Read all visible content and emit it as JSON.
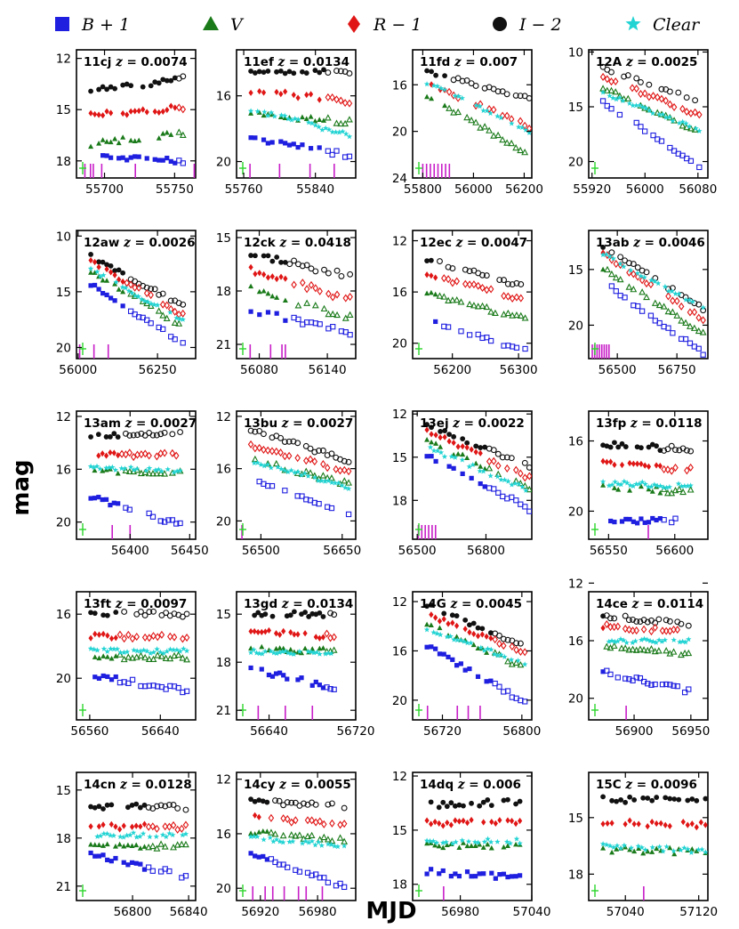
{
  "legend": [
    {
      "name": "B+1",
      "label_main": "B + 1",
      "marker": "square",
      "color": "#1f1fe0"
    },
    {
      "name": "V",
      "label_main": "V",
      "marker": "triangle",
      "color": "#1a7a1a"
    },
    {
      "name": "R-1",
      "label_main": "R − 1",
      "marker": "diamond",
      "color": "#e01515"
    },
    {
      "name": "I-2",
      "label_main": "I − 2",
      "marker": "circle",
      "color": "#111111"
    },
    {
      "name": "Clear",
      "label_main": "Clear",
      "marker": "star",
      "color": "#22d3d3"
    }
  ],
  "axes": {
    "xlabel": "MJD",
    "ylabel": "mag"
  },
  "chart_data": [
    {
      "type": "scatter",
      "name": "11cj",
      "z": "0.0074",
      "xlim": [
        55680,
        55765
      ],
      "ylim": [
        19,
        11.5
      ],
      "xticks": [
        55700,
        55750
      ],
      "yticks": [
        12,
        15,
        18
      ],
      "levels": {
        "I-2": [
          13.9,
          13.2
        ],
        "R-1": [
          15.3,
          14.9
        ],
        "V": [
          17.0,
          16.4
        ],
        "B+1": [
          17.8,
          18.0
        ]
      },
      "clear": null,
      "tmax": 55756,
      "open_after": 55753,
      "marker_ticks": [
        55686,
        55690,
        55692,
        55698,
        55722,
        55764
      ]
    },
    {
      "type": "scatter",
      "name": "11ef",
      "z": "0.0134",
      "xlim": [
        55752,
        55885
      ],
      "ylim": [
        21,
        13.2
      ],
      "xticks": [
        55760,
        55840
      ],
      "yticks": [
        16,
        20
      ],
      "levels": {
        "I-2": [
          14.5,
          14.6
        ],
        "R-1": [
          15.7,
          16.3
        ],
        "V": [
          17.1,
          17.6
        ],
        "B+1": [
          18.6,
          19.6
        ]
      },
      "clear": [
        16.8,
        18.4
      ],
      "tmax": 55878,
      "open_after": 55850,
      "marker_ticks": [
        55767,
        55800,
        55834,
        55861
      ]
    },
    {
      "type": "scatter",
      "name": "11fd",
      "z": "0.007",
      "xlim": [
        55760,
        56230
      ],
      "ylim": [
        24,
        13
      ],
      "xticks": [
        55800,
        56000,
        56200
      ],
      "yticks": [
        16,
        20,
        24
      ],
      "levels": {
        "I-2": [
          14.9,
          17.2
        ],
        "R-1": [
          15.9,
          19.6
        ],
        "V": [
          16.9,
          22.0
        ],
        "B+1": [
          null,
          null
        ]
      },
      "clear": [
        15.8,
        20.0
      ],
      "tmax": 56220,
      "open_after": 55900,
      "marker_ticks": [
        55800,
        55815,
        55830,
        55845,
        55860,
        55875,
        55890,
        55905
      ]
    },
    {
      "type": "scatter",
      "name": "12A",
      "z": "0.0025",
      "xlim": [
        55915,
        56095
      ],
      "ylim": [
        21.5,
        9.8
      ],
      "xticks": [
        55920,
        56000,
        56080
      ],
      "yticks": [
        10,
        15,
        20
      ],
      "levels": {
        "I-2": [
          11.4,
          14.5
        ],
        "R-1": [
          12.3,
          15.8
        ],
        "V": [
          13.3,
          17.3
        ],
        "B+1": [
          14.5,
          20.6
        ]
      },
      "clear": [
        13.7,
        17.1
      ],
      "tmax": 56082,
      "open_after": 55930,
      "marker_ticks": []
    },
    {
      "type": "scatter",
      "name": "12aw",
      "z": "0.0026",
      "xlim": [
        55995,
        56370
      ],
      "ylim": [
        21,
        9.5
      ],
      "xticks": [
        56000,
        56250
      ],
      "yticks": [
        10,
        15,
        20
      ],
      "levels": {
        "I-2": [
          11.8,
          16.3
        ],
        "R-1": [
          12.3,
          17.1
        ],
        "V": [
          13.2,
          18.1
        ],
        "B+1": [
          14.3,
          19.7
        ]
      },
      "clear": [
        13.0,
        17.6
      ],
      "tmax": 56330,
      "open_after": 56150,
      "marker_ticks": [
        56005,
        56050,
        56095
      ]
    },
    {
      "type": "scatter",
      "name": "12ck",
      "z": "0.0418",
      "xlim": [
        56060,
        56165
      ],
      "ylim": [
        21.8,
        14.6
      ],
      "xticks": [
        56080,
        56140
      ],
      "yticks": [
        15,
        18,
        21
      ],
      "levels": {
        "I-2": [
          15.9,
          17.2
        ],
        "R-1": [
          16.8,
          18.5
        ],
        "V": [
          17.9,
          19.5
        ],
        "B+1": [
          19.1,
          20.3
        ]
      },
      "clear": null,
      "tmax": 56160,
      "open_after": 56105,
      "marker_ticks": [
        56072,
        56090,
        56100,
        56103
      ]
    },
    {
      "type": "scatter",
      "name": "12ec",
      "z": "0.0047",
      "xlim": [
        56140,
        56320
      ],
      "ylim": [
        21.2,
        11.2
      ],
      "xticks": [
        56200,
        56300
      ],
      "yticks": [
        12,
        16,
        20
      ],
      "levels": {
        "I-2": [
          13.5,
          15.6
        ],
        "R-1": [
          14.6,
          16.6
        ],
        "V": [
          16.1,
          18.1
        ],
        "B+1": [
          18.2,
          20.6
        ]
      },
      "clear": null,
      "tmax": 56310,
      "open_after": 56180,
      "marker_ticks": []
    },
    {
      "type": "scatter",
      "name": "13ab",
      "z": "0.0046",
      "xlim": [
        56380,
        56880
      ],
      "ylim": [
        23,
        11.5
      ],
      "xticks": [
        56500,
        56750
      ],
      "yticks": [
        15,
        20
      ],
      "levels": {
        "I-2": [
          13.0,
          18.5
        ],
        "R-1": [
          13.6,
          19.5
        ],
        "V": [
          14.9,
          20.8
        ],
        "B+1": [
          16.1,
          22.5
        ]
      },
      "clear": [
        13.6,
        18.5
      ],
      "tmax": 56860,
      "open_after": 56450,
      "marker_ticks": [
        56395,
        56405,
        56415,
        56425,
        56435,
        56445,
        56455,
        56465
      ]
    },
    {
      "type": "scatter",
      "name": "13am",
      "z": "0.0027",
      "xlim": [
        56355,
        56455
      ],
      "ylim": [
        21.3,
        11.6
      ],
      "xticks": [
        56400,
        56450
      ],
      "yticks": [
        12,
        16,
        20
      ],
      "levels": {
        "I-2": [
          13.5,
          13.2
        ],
        "R-1": [
          14.9,
          14.9
        ],
        "V": [
          16.1,
          16.3
        ],
        "B+1": [
          18.1,
          20.2
        ]
      },
      "clear": [
        15.9,
        16.1
      ],
      "tmax": 56442,
      "open_after": 56390,
      "marker_ticks": [
        56385,
        56400
      ]
    },
    {
      "type": "scatter",
      "name": "13bu",
      "z": "0.0027",
      "xlim": [
        56455,
        56675
      ],
      "ylim": [
        21.4,
        11.6
      ],
      "xticks": [
        56500,
        56650
      ],
      "yticks": [
        12,
        16,
        20
      ],
      "levels": {
        "I-2": [
          13.0,
          15.4
        ],
        "R-1": [
          14.2,
          16.2
        ],
        "V": [
          15.3,
          17.2
        ],
        "B+1": [
          16.7,
          19.5
        ]
      },
      "clear": [
        15.4,
        17.4
      ],
      "tmax": 56662,
      "open_after": 56465,
      "marker_ticks": [
        56465
      ]
    },
    {
      "type": "scatter",
      "name": "13ej",
      "z": "0.0022",
      "xlim": [
        56480,
        57000
      ],
      "ylim": [
        20.7,
        11.8
      ],
      "xticks": [
        56500,
        56800
      ],
      "yticks": [
        12,
        15,
        18
      ],
      "levels": {
        "I-2": [
          12.8,
          15.6
        ],
        "R-1": [
          13.2,
          16.4
        ],
        "V": [
          13.8,
          17.2
        ],
        "B+1": [
          14.8,
          18.6
        ]
      },
      "clear": [
        14.3,
        17.3
      ],
      "tmax": 56990,
      "open_after": 56800,
      "marker_ticks": [
        56505,
        56520,
        56535,
        56550,
        56565,
        56580
      ]
    },
    {
      "type": "scatter",
      "name": "13fp",
      "z": "0.0118",
      "xlim": [
        56535,
        56625
      ],
      "ylim": [
        21.6,
        14.3
      ],
      "xticks": [
        56550,
        56600
      ],
      "yticks": [
        16,
        20
      ],
      "levels": {
        "I-2": [
          16.2,
          16.5
        ],
        "R-1": [
          17.3,
          17.6
        ],
        "V": [
          18.6,
          18.9
        ],
        "B+1": [
          20.5,
          20.6
        ]
      },
      "clear": [
        18.4,
        18.6
      ],
      "tmax": 56612,
      "open_after": 56590,
      "marker_ticks": [
        56580
      ]
    },
    {
      "type": "scatter",
      "name": "13ft",
      "z": "0.0097",
      "xlim": [
        56545,
        56680
      ],
      "ylim": [
        22.6,
        14.6
      ],
      "xticks": [
        56560,
        56640
      ],
      "yticks": [
        16,
        20
      ],
      "levels": {
        "I-2": [
          16.0,
          16.0
        ],
        "R-1": [
          17.4,
          17.4
        ],
        "V": [
          18.7,
          18.7
        ],
        "B+1": [
          19.8,
          20.8
        ]
      },
      "clear": [
        18.3,
        18.3
      ],
      "tmax": 56670,
      "open_after": 56590,
      "marker_ticks": []
    },
    {
      "type": "scatter",
      "name": "13gd",
      "z": "0.0134",
      "xlim": [
        56610,
        56720
      ],
      "ylim": [
        21.6,
        13.6
      ],
      "xticks": [
        56640,
        56720
      ],
      "yticks": [
        15,
        18,
        21
      ],
      "levels": {
        "I-2": [
          15.0,
          15.0
        ],
        "R-1": [
          16.1,
          16.4
        ],
        "V": [
          17.2,
          17.3
        ],
        "B+1": [
          18.4,
          19.6
        ]
      },
      "clear": [
        17.3,
        17.5
      ],
      "tmax": 56700,
      "open_after": 56690,
      "marker_ticks": [
        56630,
        56655,
        56680
      ]
    },
    {
      "type": "scatter",
      "name": "14G",
      "z": "0.0045",
      "xlim": [
        56690,
        56810
      ],
      "ylim": [
        21.6,
        11.2
      ],
      "xticks": [
        56720,
        56800
      ],
      "yticks": [
        12,
        16,
        20
      ],
      "levels": {
        "I-2": [
          12.3,
          15.6
        ],
        "R-1": [
          13.0,
          16.2
        ],
        "V": [
          13.8,
          17.4
        ],
        "B+1": [
          15.6,
          20.2
        ]
      },
      "clear": [
        14.2,
        17.0
      ],
      "tmax": 56803,
      "open_after": 56770,
      "marker_ticks": [
        56705,
        56735,
        56746,
        56758
      ]
    },
    {
      "type": "scatter",
      "name": "14ce",
      "z": "0.0114",
      "xlim": [
        56860,
        56965
      ],
      "ylim": [
        21.5,
        12.6
      ],
      "xticks": [
        56900,
        56950
      ],
      "yticks": [
        12,
        16,
        20
      ],
      "levels": {
        "I-2": [
          14.3,
          14.8
        ],
        "R-1": [
          15.0,
          15.4
        ],
        "V": [
          16.3,
          17.0
        ],
        "B+1": [
          18.2,
          19.5
        ]
      },
      "clear": [
        16.0,
        16.0
      ],
      "tmax": 56948,
      "open_after": 56875,
      "marker_ticks": [
        56893
      ]
    },
    {
      "type": "scatter",
      "name": "14cn",
      "z": "0.0128",
      "xlim": [
        56760,
        56845
      ],
      "ylim": [
        21.9,
        13.9
      ],
      "xticks": [
        56800,
        56840
      ],
      "yticks": [
        15,
        18,
        21
      ],
      "levels": {
        "I-2": [
          16.0,
          16.1
        ],
        "R-1": [
          17.3,
          17.3
        ],
        "V": [
          18.5,
          18.5
        ],
        "B+1": [
          19.0,
          20.4
        ]
      },
      "clear": [
        17.8,
        17.8
      ],
      "tmax": 56838,
      "open_after": 56810,
      "marker_ticks": []
    },
    {
      "type": "scatter",
      "name": "14cy",
      "z": "0.0055",
      "xlim": [
        56895,
        57020
      ],
      "ylim": [
        20.9,
        11.5
      ],
      "xticks": [
        56920,
        56980
      ],
      "yticks": [
        12,
        16,
        20
      ],
      "levels": {
        "I-2": [
          13.6,
          14.0
        ],
        "R-1": [
          14.8,
          15.4
        ],
        "V": [
          15.9,
          16.5
        ],
        "B+1": [
          17.4,
          19.9
        ]
      },
      "clear": [
        16.3,
        16.9
      ],
      "tmax": 57008,
      "open_after": 56930,
      "marker_ticks": [
        56912,
        56925,
        56933,
        56945,
        56960,
        56968,
        56985
      ]
    },
    {
      "type": "scatter",
      "name": "14dq",
      "z": "0.006",
      "xlim": [
        56940,
        57040
      ],
      "ylim": [
        18.9,
        11.8
      ],
      "xticks": [
        56980,
        57040
      ],
      "yticks": [
        12,
        15,
        18
      ],
      "levels": {
        "I-2": [
          13.6,
          13.4
        ],
        "R-1": [
          14.6,
          14.5
        ],
        "V": [
          15.9,
          15.8
        ],
        "B+1": [
          17.3,
          17.6
        ]
      },
      "clear": [
        15.7,
        15.6
      ],
      "tmax": 57030,
      "open_after": 57050,
      "marker_ticks": [
        56966
      ]
    },
    {
      "type": "scatter",
      "name": "15C",
      "z": "0.0096",
      "xlim": [
        57000,
        57130
      ],
      "ylim": [
        19.4,
        12.6
      ],
      "xticks": [
        57040,
        57120
      ],
      "yticks": [
        15,
        18
      ],
      "levels": {
        "I-2": [
          14.0,
          14.1
        ],
        "R-1": [
          15.3,
          15.4
        ],
        "V": [
          16.7,
          16.8
        ],
        "B+1": [
          null,
          null
        ]
      },
      "clear": [
        16.5,
        16.8
      ],
      "tmax": 57130,
      "open_after": 57200,
      "marker_ticks": [
        57060
      ]
    }
  ]
}
